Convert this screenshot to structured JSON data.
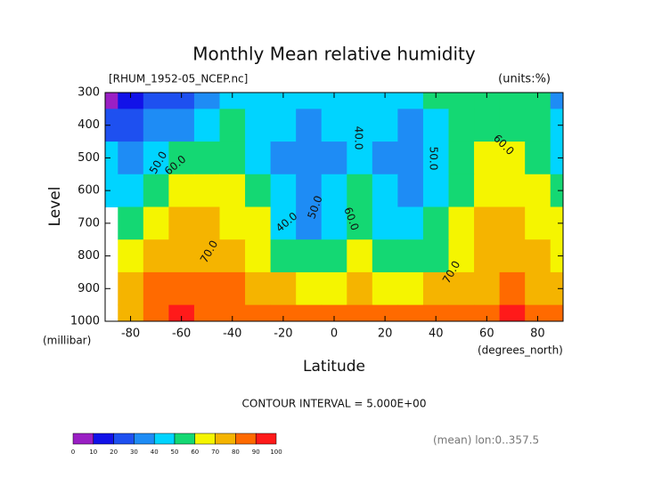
{
  "chart_data": {
    "type": "contour",
    "title": "Monthly Mean relative humidity",
    "source": "[RHUM_1952-05_NCEP.nc]",
    "units": "(units:%)",
    "ylabel": "Level",
    "yunits": "(millibar)",
    "xlabel": "Latitude",
    "xunits": "(degrees_north)",
    "note": "CONTOUR INTERVAL = 5.000E+00",
    "footer": "(mean) lon:0..357.5",
    "x": [
      -90,
      -80,
      -70,
      -60,
      -50,
      -40,
      -30,
      -20,
      -10,
      0,
      10,
      20,
      30,
      40,
      50,
      60,
      70,
      80,
      90
    ],
    "y": [
      300,
      400,
      500,
      600,
      700,
      800,
      900,
      1000
    ],
    "values": [
      [
        5,
        15,
        20,
        25,
        35,
        40,
        40,
        42,
        45,
        48,
        45,
        45,
        45,
        50,
        52,
        52,
        50,
        50,
        30
      ],
      [
        25,
        25,
        30,
        35,
        45,
        50,
        45,
        40,
        35,
        40,
        42,
        40,
        38,
        45,
        52,
        55,
        55,
        50,
        40
      ],
      [
        40,
        30,
        40,
        50,
        55,
        55,
        48,
        37,
        32,
        38,
        48,
        38,
        35,
        45,
        55,
        62,
        60,
        55,
        48
      ],
      [
        45,
        40,
        55,
        60,
        62,
        60,
        52,
        40,
        33,
        40,
        52,
        40,
        35,
        48,
        58,
        68,
        66,
        60,
        55
      ],
      [
        null,
        55,
        65,
        70,
        70,
        68,
        60,
        45,
        38,
        45,
        55,
        45,
        42,
        52,
        62,
        70,
        70,
        65,
        60
      ],
      [
        null,
        65,
        72,
        75,
        75,
        73,
        68,
        55,
        50,
        55,
        60,
        55,
        52,
        58,
        68,
        72,
        72,
        70,
        68
      ],
      [
        null,
        72,
        80,
        82,
        82,
        80,
        78,
        72,
        65,
        68,
        70,
        68,
        65,
        70,
        75,
        78,
        80,
        78,
        75
      ],
      [
        null,
        78,
        85,
        90,
        88,
        85,
        82,
        80,
        82,
        85,
        88,
        85,
        80,
        82,
        85,
        88,
        92,
        88,
        82
      ]
    ],
    "xlim": [
      -90,
      90
    ],
    "xticks": [
      -80,
      -60,
      -40,
      -20,
      0,
      20,
      40,
      60,
      80
    ],
    "ylim": [
      1000,
      300
    ],
    "yticks": [
      1000,
      900,
      800,
      700,
      600,
      500,
      400,
      300
    ],
    "contour_labels": [
      "50.0",
      "60.0",
      "70.0",
      "40.0",
      "50.0",
      "40.0",
      "60.0",
      "50.0",
      "70.0",
      "60.0"
    ],
    "colorbar": {
      "levels": [
        0,
        10,
        20,
        30,
        40,
        50,
        60,
        70,
        80,
        90,
        100
      ],
      "colors": [
        "#9a1fc4",
        "#1212e8",
        "#1e50f0",
        "#1e8cf5",
        "#00d4ff",
        "#14d873",
        "#f5f500",
        "#f5b400",
        "#ff6a00",
        "#ff1a1a"
      ]
    }
  }
}
